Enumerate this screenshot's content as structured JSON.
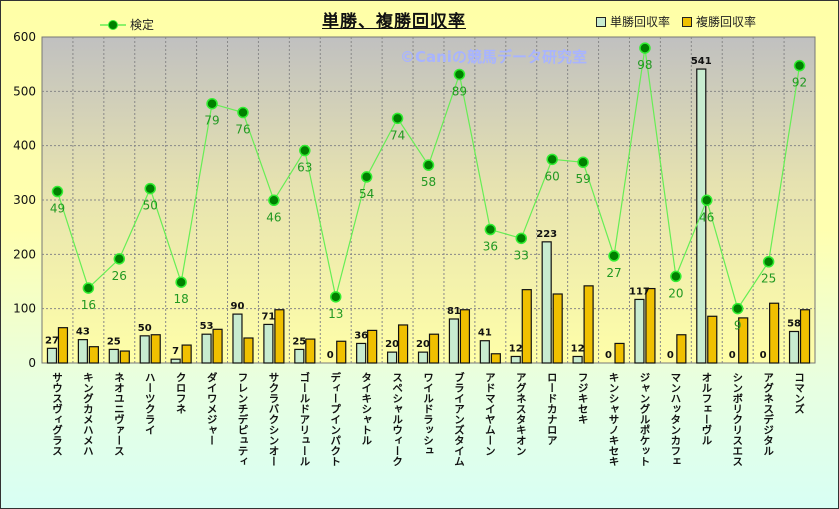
{
  "chart_data": {
    "type": "bar",
    "title": "単勝、複勝回収率",
    "watermark": "©Caniの競馬データ研究室",
    "ylim": [
      0,
      600
    ],
    "yticks": [
      0,
      100,
      200,
      300,
      400,
      500,
      600
    ],
    "grid": true,
    "legend": [
      {
        "name": "検定",
        "placement": "top-left"
      },
      {
        "name": "単勝回収率",
        "placement": "top-right"
      },
      {
        "name": "複勝回収率",
        "placement": "top-right"
      }
    ],
    "categories": [
      "サウスヴィグラス",
      "キングカメハメハ",
      "ネオユニヴァース",
      "ハーツクライ",
      "クロフネ",
      "ダイワメジャー",
      "フレンチデピュティ",
      "サクラバクシンオー",
      "ゴールドアリュール",
      "ディープインパクト",
      "タイキシャトル",
      "スペシャルウィーク",
      "ワイルドラッシュ",
      "ブライアンズタイム",
      "アドマイヤムーン",
      "アグネスタキオン",
      "ロードカナロア",
      "フジキセキ",
      "キンシャサノキセキ",
      "ジャングルポケット",
      "マンハッタンカフェ",
      "オルフェーヴル",
      "シンボリクリスエス",
      "アグネスデジタル",
      "コマンズ"
    ],
    "series": [
      {
        "name": "単勝回収率",
        "type": "bar",
        "color": "#c8ecd0",
        "values": [
          27,
          43,
          25,
          50,
          7,
          53,
          90,
          71,
          25,
          0,
          36,
          20,
          20,
          81,
          41,
          12,
          223,
          12,
          0,
          117,
          0,
          541,
          0,
          0,
          58
        ]
      },
      {
        "name": "複勝回収率",
        "type": "bar",
        "color": "#f0c000",
        "values": [
          65,
          30,
          22,
          52,
          33,
          62,
          46,
          98,
          44,
          40,
          60,
          70,
          53,
          98,
          17,
          135,
          127,
          142,
          36,
          137,
          52,
          86,
          83,
          110,
          98
        ]
      },
      {
        "name": "検定",
        "type": "line",
        "color": "#008000",
        "line_color": "#66ee55",
        "axis_range": [
          -9.6,
          101.8
        ],
        "values": [
          49,
          16,
          26,
          50,
          18,
          79,
          76,
          46,
          63,
          13,
          54,
          74,
          58,
          89,
          36,
          33,
          60,
          59,
          27,
          98,
          20,
          46,
          9,
          25,
          92
        ]
      }
    ]
  }
}
